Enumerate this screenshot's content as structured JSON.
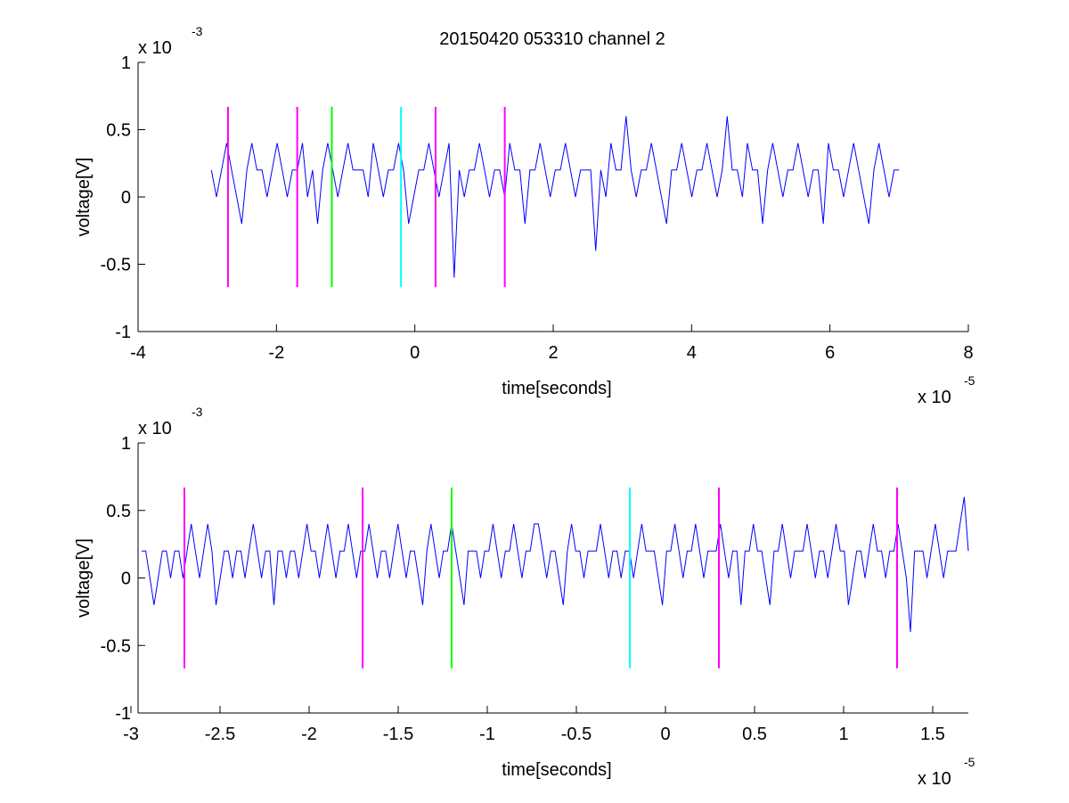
{
  "figure_title": "20150420 053310 channel 2",
  "chart_data": [
    {
      "type": "line",
      "ylabel": "voltage[V]",
      "xlabel": "time[seconds]",
      "x_exponent": "x 10",
      "x_exponent_power": "-5",
      "y_exponent": "x 10",
      "y_exponent_power": "-3",
      "xlim": [
        -4,
        8
      ],
      "ylim": [
        -1,
        1
      ],
      "x_ticks": [
        -4,
        -2,
        0,
        2,
        4,
        6,
        8
      ],
      "x_tick_labels": [
        "-4",
        "-2",
        "0",
        "2",
        "4",
        "6",
        "8"
      ],
      "y_ticks": [
        -1,
        -0.5,
        0,
        0.5,
        1
      ],
      "y_tick_labels": [
        "-1",
        "-0.5",
        "0",
        "0.5",
        "1"
      ],
      "signal": {
        "name": "signal",
        "color": "#0000ff",
        "x_start": -2.94,
        "x_end": 7.0,
        "levels": [
          -0.6,
          -0.4,
          -0.2,
          0,
          0.2,
          0.4,
          0.6
        ],
        "values": [
          0.2,
          0,
          0.2,
          0.4,
          0.2,
          0,
          -0.2,
          0.2,
          0.4,
          0.2,
          0.2,
          0,
          0.2,
          0.4,
          0.2,
          0,
          0.2,
          0.2,
          0.4,
          0,
          0.2,
          -0.2,
          0.2,
          0.4,
          0.2,
          0,
          0.2,
          0.4,
          0.2,
          0.2,
          0.2,
          0,
          0.4,
          0.2,
          0,
          0.2,
          0.2,
          0.4,
          0.2,
          -0.2,
          0,
          0.2,
          0.2,
          0.4,
          0.2,
          0,
          0.2,
          0.4,
          -0.6,
          0.2,
          0,
          0.2,
          0.2,
          0.4,
          0.2,
          0,
          0.2,
          0.2,
          0,
          0.4,
          0.2,
          0.2,
          -0.2,
          0.2,
          0.2,
          0.4,
          0.2,
          0,
          0.2,
          0.2,
          0.4,
          0.2,
          0,
          0.2,
          0.2,
          0.2,
          -0.4,
          0.2,
          0,
          0.4,
          0.2,
          0.2,
          0.6,
          0.2,
          0,
          0.2,
          0.2,
          0.4,
          0.2,
          0,
          -0.2,
          0.2,
          0.2,
          0.4,
          0.2,
          0,
          0.2,
          0.2,
          0.4,
          0.2,
          0,
          0.2,
          0.6,
          0.2,
          0.2,
          0,
          0.4,
          0.2,
          0.2,
          -0.2,
          0.2,
          0.4,
          0.2,
          0,
          0.2,
          0.2,
          0.4,
          0.2,
          0,
          0.2,
          0.2,
          -0.2,
          0.4,
          0.2,
          0.2,
          0,
          0.2,
          0.4,
          0.2,
          0,
          -0.2,
          0.2,
          0.4,
          0.2,
          0,
          0.2,
          0.2
        ]
      },
      "markers": [
        {
          "x": -2.7,
          "color": "#ff00ff"
        },
        {
          "x": -1.7,
          "color": "#ff00ff"
        },
        {
          "x": -1.2,
          "color": "#00ff00"
        },
        {
          "x": -0.2,
          "color": "#00ffff"
        },
        {
          "x": 0.3,
          "color": "#ff00ff"
        },
        {
          "x": 1.3,
          "color": "#ff00ff"
        }
      ],
      "marker_ylim": [
        -0.67,
        0.67
      ]
    },
    {
      "type": "line",
      "ylabel": "voltage[V]",
      "xlabel": "time[seconds]",
      "x_exponent": "x 10",
      "x_exponent_power": "-5",
      "y_exponent": "x 10",
      "y_exponent_power": "-3",
      "xlim": [
        -2.96,
        1.7
      ],
      "ylim": [
        -1,
        1
      ],
      "x_ticks": [
        -3,
        -2.5,
        -2,
        -1.5,
        -1,
        -0.5,
        0,
        0.5,
        1,
        1.5
      ],
      "x_tick_labels": [
        "-3",
        "-2.5",
        "-2",
        "-1.5",
        "-1",
        "-0.5",
        "0",
        "0.5",
        "1",
        "1.5"
      ],
      "y_ticks": [
        -1,
        -0.5,
        0,
        0.5,
        1
      ],
      "y_tick_labels": [
        "-1",
        "-0.5",
        "0",
        "0.5",
        "1"
      ],
      "signal": {
        "name": "signal",
        "color": "#0000ff",
        "x_start": -2.94,
        "x_end": 1.7,
        "values": [
          0.2,
          0.2,
          0,
          -0.2,
          0,
          0.2,
          0.2,
          0,
          0.2,
          0.2,
          0,
          0.2,
          0.4,
          0.2,
          0,
          0.2,
          0.4,
          0.2,
          -0.2,
          0,
          0.2,
          0.2,
          0,
          0.2,
          0.2,
          0,
          0.2,
          0.4,
          0.2,
          0,
          0.2,
          0.2,
          -0.2,
          0.2,
          0.2,
          0,
          0.2,
          0.2,
          0,
          0.2,
          0.4,
          0.2,
          0.2,
          0,
          0.2,
          0.4,
          0.2,
          0,
          0.2,
          0.2,
          0.4,
          0.2,
          0,
          0.2,
          0.2,
          0.4,
          0.2,
          0,
          0.2,
          0.2,
          0,
          0.2,
          0.4,
          0.2,
          0,
          0.2,
          0.2,
          0,
          -0.2,
          0.2,
          0.4,
          0.2,
          0,
          0.2,
          0.2,
          0.4,
          0.2,
          0,
          -0.2,
          0.2,
          0.2,
          0.2,
          0,
          0.2,
          0.2,
          0.4,
          0.2,
          0,
          0.2,
          0.2,
          0.4,
          0.2,
          0,
          0.2,
          0.2,
          0.4,
          0.4,
          0.2,
          0,
          0.2,
          0.2,
          0,
          -0.2,
          0.2,
          0.4,
          0.2,
          0.2,
          0,
          0.2,
          0.2,
          0.2,
          0.4,
          0.2,
          0,
          0.2,
          0.2,
          0,
          0.2,
          0.2,
          0,
          0.2,
          0.4,
          0.2,
          0.2,
          0.2,
          0,
          -0.2,
          0.2,
          0.2,
          0.4,
          0.2,
          0,
          0.2,
          0.2,
          0.4,
          0.2,
          0,
          0.2,
          0.2,
          0.2,
          0.4,
          0.2,
          0,
          0.2,
          0.2,
          -0.2,
          0.2,
          0.2,
          0.4,
          0.2,
          0.2,
          0,
          -0.2,
          0.2,
          0.2,
          0.4,
          0.2,
          0,
          0.2,
          0.2,
          0.2,
          0.4,
          0.2,
          0,
          0.2,
          0.2,
          0,
          0.2,
          0.4,
          0.2,
          0.2,
          -0.2,
          0,
          0.2,
          0.2,
          0,
          0.2,
          0.4,
          0.2,
          0.2,
          0,
          0.2,
          0.2,
          0.4,
          0.2,
          0,
          -0.4,
          0.2,
          0.2,
          0.2,
          0,
          0.2,
          0.4,
          0.2,
          0,
          0.2,
          0.2,
          0.2,
          0.4,
          0.6,
          0.2
        ]
      },
      "markers": [
        {
          "x": -2.7,
          "color": "#ff00ff"
        },
        {
          "x": -1.7,
          "color": "#ff00ff"
        },
        {
          "x": -1.2,
          "color": "#00ff00"
        },
        {
          "x": -0.2,
          "color": "#00ffff"
        },
        {
          "x": 0.3,
          "color": "#ff00ff"
        },
        {
          "x": 1.3,
          "color": "#ff00ff"
        }
      ],
      "marker_ylim": [
        -0.67,
        0.67
      ]
    }
  ]
}
